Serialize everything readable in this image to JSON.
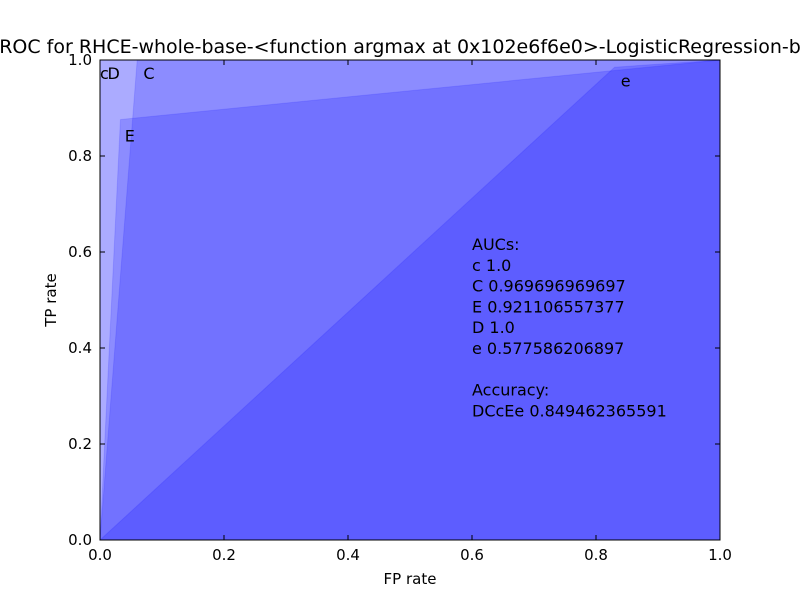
{
  "chart_data": {
    "type": "area",
    "title": "ROC for RHCE-whole-base-<function argmax at 0x102e6f6e0>-LogisticRegression-b",
    "xlabel": "FP rate",
    "ylabel": "TP rate",
    "xlim": [
      0.0,
      1.0
    ],
    "ylim": [
      0.0,
      1.0
    ],
    "xticks": [
      "0.0",
      "0.2",
      "0.4",
      "0.6",
      "0.8",
      "1.0"
    ],
    "yticks": [
      "0.0",
      "0.2",
      "0.4",
      "0.6",
      "0.8",
      "1.0"
    ],
    "grid": false,
    "fill_color": "#0000ff",
    "series": [
      {
        "name": "c",
        "label": "c",
        "x": [
          0.0,
          0.0,
          1.0
        ],
        "y": [
          0.0,
          1.0,
          1.0
        ],
        "label_at": [
          0.0,
          0.96
        ]
      },
      {
        "name": "D",
        "label": "D",
        "x": [
          0.0,
          0.0,
          1.0
        ],
        "y": [
          0.0,
          1.0,
          1.0
        ],
        "label_at": [
          0.012,
          0.96
        ]
      },
      {
        "name": "C",
        "label": "C",
        "x": [
          0.0,
          0.06,
          1.0
        ],
        "y": [
          0.0,
          1.0,
          1.0
        ],
        "label_at": [
          0.07,
          0.96
        ]
      },
      {
        "name": "E",
        "label": "E",
        "x": [
          0.0,
          0.033,
          1.0
        ],
        "y": [
          0.0,
          0.876,
          1.0
        ],
        "label_at": [
          0.04,
          0.83
        ]
      },
      {
        "name": "e",
        "label": "e",
        "x": [
          0.0,
          0.83,
          1.0
        ],
        "y": [
          0.0,
          0.985,
          1.0
        ],
        "label_at": [
          0.84,
          0.945
        ]
      }
    ],
    "info_lines": [
      "AUCs:",
      "c  1.0",
      "C  0.969696969697",
      "E  0.921106557377",
      "D  1.0",
      "e  0.577586206897",
      "",
      "Accuracy:",
      "DCcEe  0.849462365591"
    ]
  }
}
